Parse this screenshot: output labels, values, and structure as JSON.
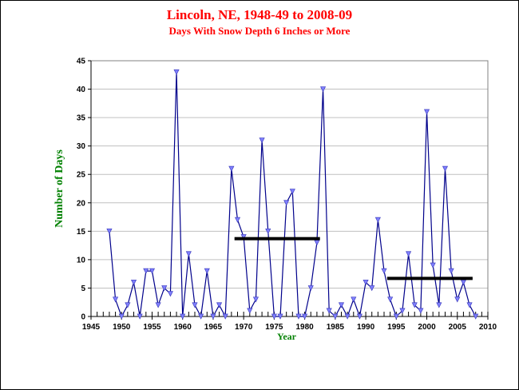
{
  "chart_data": {
    "type": "line",
    "title": "Lincoln, NE, 1948-49 to 2008-09",
    "subtitle": "Days With Snow Depth 6 Inches or More",
    "xlabel": "Year",
    "ylabel": "Number of Days",
    "xlim": [
      1945,
      2010
    ],
    "ylim": [
      0,
      45
    ],
    "x_ticks": [
      "1945",
      "1950",
      "1955",
      "1960",
      "1965",
      "1970",
      "1975",
      "1980",
      "1985",
      "1990",
      "1995",
      "2000",
      "2005",
      "2010"
    ],
    "y_ticks": [
      "0",
      "5",
      "10",
      "15",
      "20",
      "25",
      "30",
      "35",
      "40",
      "45"
    ],
    "grid": true,
    "series": [
      {
        "x": [
          1948,
          1949,
          1950,
          1951,
          1952,
          1953,
          1954,
          1955,
          1956,
          1957,
          1958,
          1959,
          1960,
          1961,
          1962,
          1963,
          1964,
          1965,
          1966,
          1967,
          1968,
          1969,
          1970,
          1971,
          1972,
          1973,
          1974,
          1975,
          1976,
          1977,
          1978,
          1979,
          1980,
          1981,
          1982,
          1983,
          1984,
          1985,
          1986,
          1987,
          1988,
          1989,
          1990,
          1991,
          1992,
          1993,
          1994,
          1995,
          1996,
          1997,
          1998,
          1999,
          2000,
          2001,
          2002,
          2003,
          2004,
          2005,
          2006,
          2007,
          2008
        ],
        "values": [
          15,
          3,
          0,
          2,
          6,
          0,
          8,
          8,
          2,
          5,
          4,
          43,
          0,
          11,
          2,
          0,
          8,
          0,
          2,
          0,
          26,
          17,
          14,
          1,
          3,
          31,
          15,
          0,
          0,
          20,
          22,
          0,
          0,
          5,
          13,
          40,
          1,
          0,
          2,
          0,
          3,
          0,
          6,
          5,
          17,
          8,
          3,
          0,
          1,
          11,
          2,
          1,
          36,
          9,
          2,
          26,
          8,
          3,
          6,
          2,
          0
        ],
        "color": "#00008b",
        "marker_color": "#8080ff"
      }
    ],
    "averages": [
      {
        "x_start": 1968.5,
        "x_end": 1982.5,
        "value": 13.7,
        "color": "#000000"
      },
      {
        "x_start": 1993.5,
        "x_end": 2007.5,
        "value": 6.7,
        "color": "#000000"
      }
    ],
    "colors": {
      "title": "#ff0000",
      "axis_label": "#008000",
      "grid": "#c0c0c0"
    }
  }
}
